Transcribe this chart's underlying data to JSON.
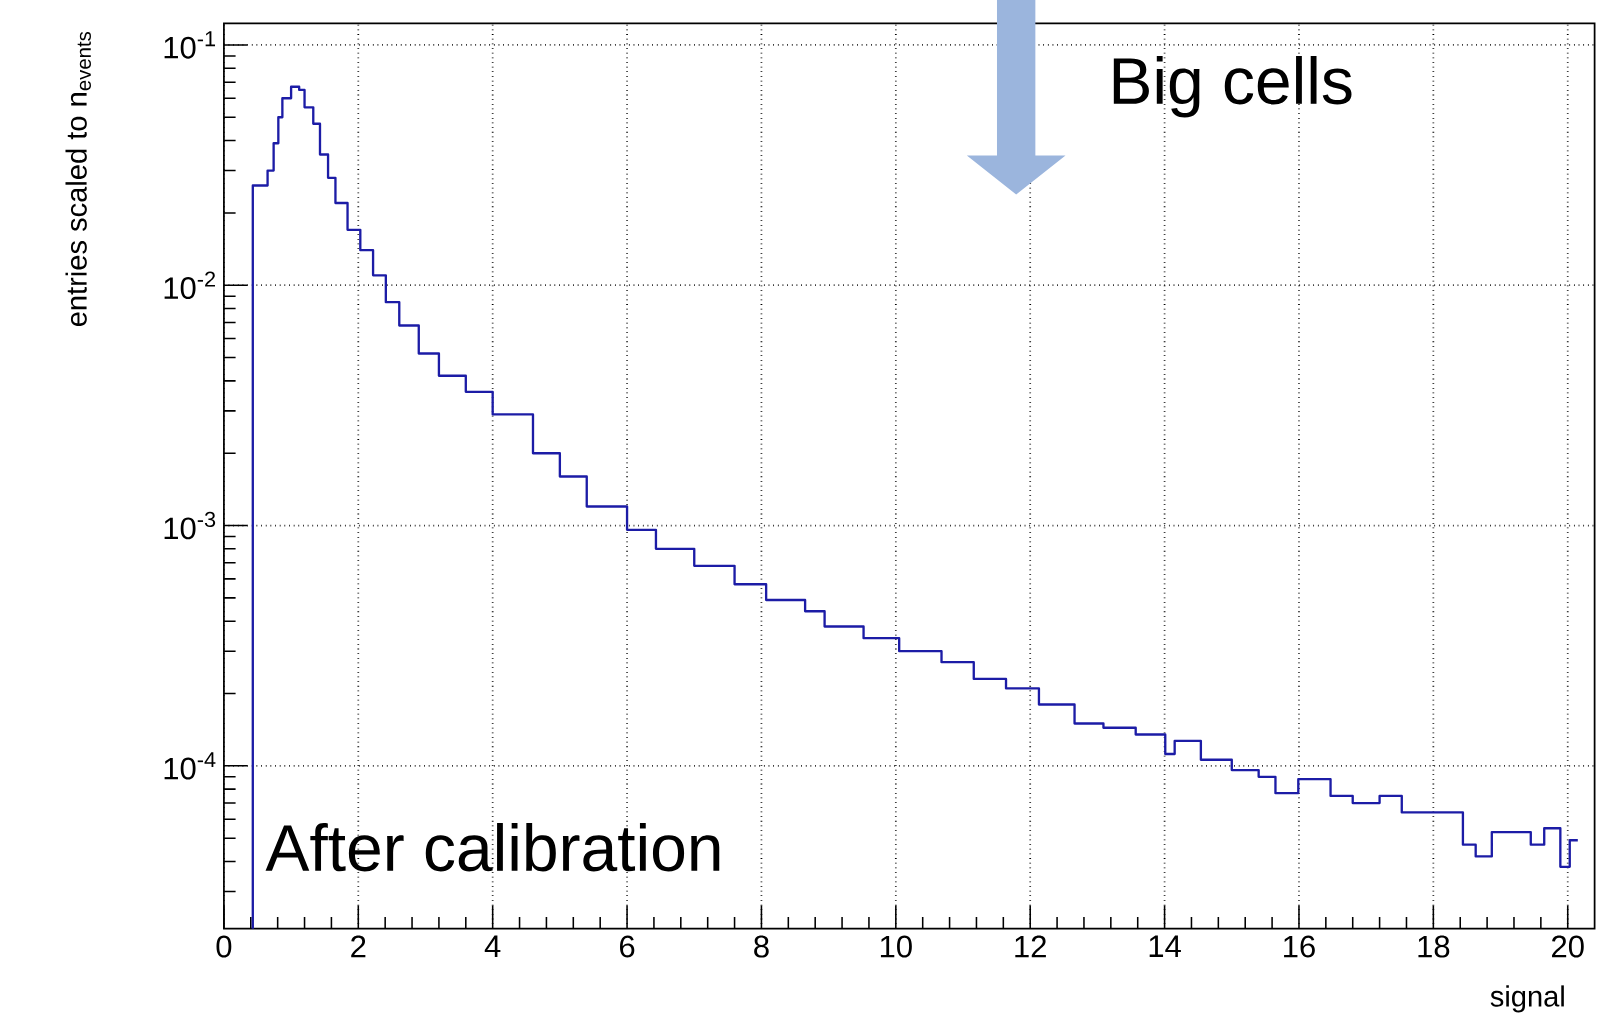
{
  "chart_data": {
    "type": "histogram",
    "xlabel": "signal",
    "ylabel": "entries scaled to n$_{events}$",
    "annotations": [
      "Big cells",
      "After calibration"
    ],
    "bins": [
      0.43,
      0.65,
      0.74,
      0.81,
      0.87,
      1.0,
      1.12,
      1.2,
      1.33,
      1.43,
      1.55,
      1.66,
      1.84,
      2.03,
      2.22,
      2.41,
      2.61,
      2.9,
      3.2,
      3.6,
      4.0,
      4.6,
      5.0,
      5.4,
      6.0,
      6.43,
      7.0,
      7.6,
      8.07,
      8.65,
      8.94,
      9.52,
      10.05,
      10.68,
      11.16,
      11.64,
      12.13,
      12.66,
      13.09,
      13.57,
      14.01,
      14.15,
      14.54,
      15.0,
      15.4,
      15.65,
      15.99,
      16.47,
      16.8,
      17.2,
      17.53,
      18.0,
      18.44,
      18.63,
      18.87,
      19.26,
      19.45,
      19.65,
      19.89,
      20.03,
      20.15
    ],
    "values": [
      0.026,
      0.03,
      0.039,
      0.05,
      0.06,
      0.067,
      0.065,
      0.055,
      0.047,
      0.035,
      0.028,
      0.022,
      0.017,
      0.014,
      0.011,
      0.0085,
      0.0068,
      0.0052,
      0.0042,
      0.0036,
      0.0029,
      0.002,
      0.0016,
      0.0012,
      0.00096,
      0.0008,
      0.00068,
      0.00057,
      0.00049,
      0.00044,
      0.00038,
      0.00034,
      0.0003,
      0.00027,
      0.00023,
      0.00021,
      0.00018,
      0.00015,
      0.000144,
      0.000135,
      0.000112,
      0.000127,
      0.000106,
      9.6e-05,
      9e-05,
      7.7e-05,
      8.8e-05,
      7.5e-05,
      7e-05,
      7.5e-05,
      6.4e-05,
      6.4e-05,
      4.7e-05,
      4.2e-05,
      5.3e-05,
      5.3e-05,
      4.7e-05,
      5.5e-05,
      3.8e-05,
      4.9e-05
    ],
    "color": "#1c1ca6",
    "xlim": [
      0,
      20.4
    ],
    "ylim": [
      2.1e-05,
      0.123
    ],
    "xticks": [
      0,
      2,
      4,
      6,
      8,
      10,
      12,
      14,
      16,
      18,
      20
    ],
    "yticks": [
      {
        "value": 0.0001,
        "label": "10$^{-4}$"
      },
      {
        "value": 0.001,
        "label": "10$^{-3}$"
      },
      {
        "value": 0.01,
        "label": "10$^{-2}$"
      },
      {
        "value": 0.1,
        "label": "10$^{-1}$"
      }
    ],
    "log": "y",
    "grid": true
  }
}
